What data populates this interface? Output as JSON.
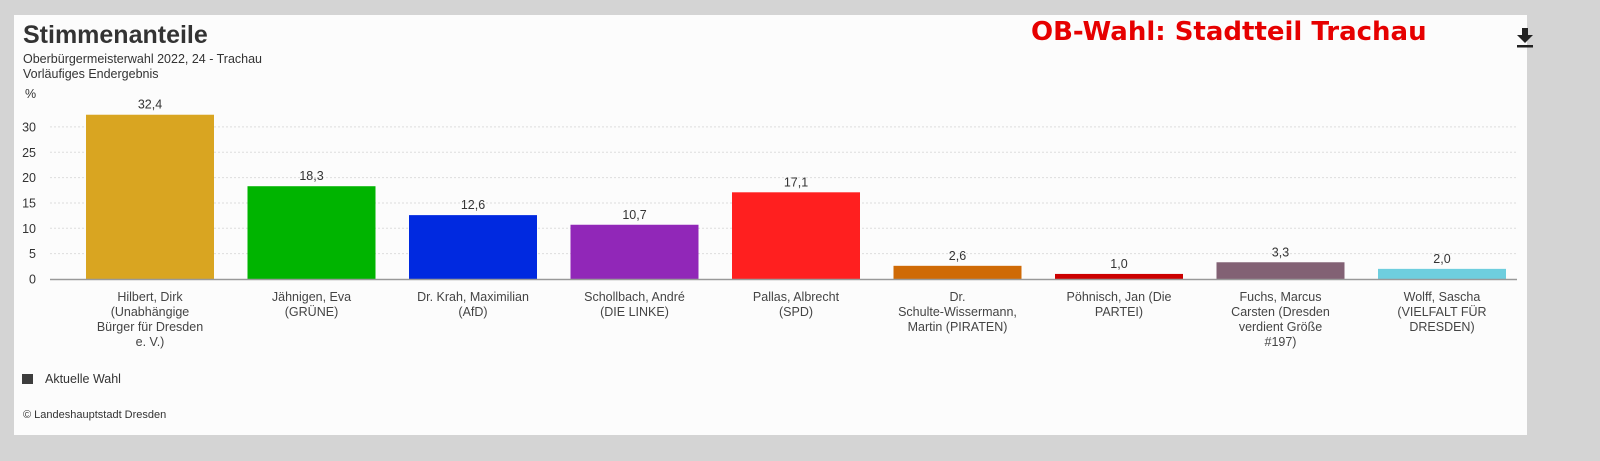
{
  "header": {
    "title": "Stimmenanteile",
    "subtitle_line1": "Oberbürgermeisterwahl 2022, 24 - Trachau",
    "subtitle_line2": "Vorläufiges Endergebnis",
    "brand_title": "OB-Wahl: Stadtteil Trachau",
    "download_icon": "download-icon"
  },
  "legend": {
    "label": "Aktuelle Wahl",
    "color": "#3d3d3d"
  },
  "credit": "© Landeshauptstadt Dresden",
  "colors": {
    "brand_red": "#e60000",
    "axis": "#999999",
    "grid": "#dddddd",
    "text": "#333333"
  },
  "chart_data": {
    "type": "bar",
    "title": "Stimmenanteile",
    "ylabel": "%",
    "ylim": [
      0,
      32.4
    ],
    "yticks": [
      0,
      5,
      10,
      15,
      20,
      25,
      30
    ],
    "grid": true,
    "legend_position": "bottom-left",
    "categories": [
      [
        "Hilbert, Dirk",
        "(Unabhängige",
        "Bürger für Dresden",
        "e. V.)"
      ],
      [
        "Jähnigen, Eva",
        "(GRÜNE)"
      ],
      [
        "Dr. Krah, Maximilian",
        "(AfD)"
      ],
      [
        "Schollbach, André",
        "(DIE LINKE)"
      ],
      [
        "Pallas, Albrecht",
        "(SPD)"
      ],
      [
        "Dr.",
        "Schulte-Wissermann,",
        "Martin (PIRATEN)"
      ],
      [
        "Pöhnisch, Jan (Die",
        "PARTEI)"
      ],
      [
        "Fuchs, Marcus",
        "Carsten (Dresden",
        "verdient Größe",
        "#197)"
      ],
      [
        "Wolff, Sascha",
        "(VIELFALT FÜR",
        "DRESDEN)"
      ]
    ],
    "series": [
      {
        "name": "Aktuelle Wahl",
        "values": [
          32.4,
          18.3,
          12.6,
          10.7,
          17.1,
          2.6,
          1.0,
          3.3,
          2.0
        ],
        "labels": [
          "32,4",
          "18,3",
          "12,6",
          "10,7",
          "17,1",
          "2,6",
          "1,0",
          "3,3",
          "2,0"
        ],
        "colors": [
          "#d9a521",
          "#00b400",
          "#0029e0",
          "#9127b8",
          "#ff1f1f",
          "#cf6a06",
          "#cc0000",
          "#826174",
          "#6ecede"
        ]
      }
    ]
  }
}
